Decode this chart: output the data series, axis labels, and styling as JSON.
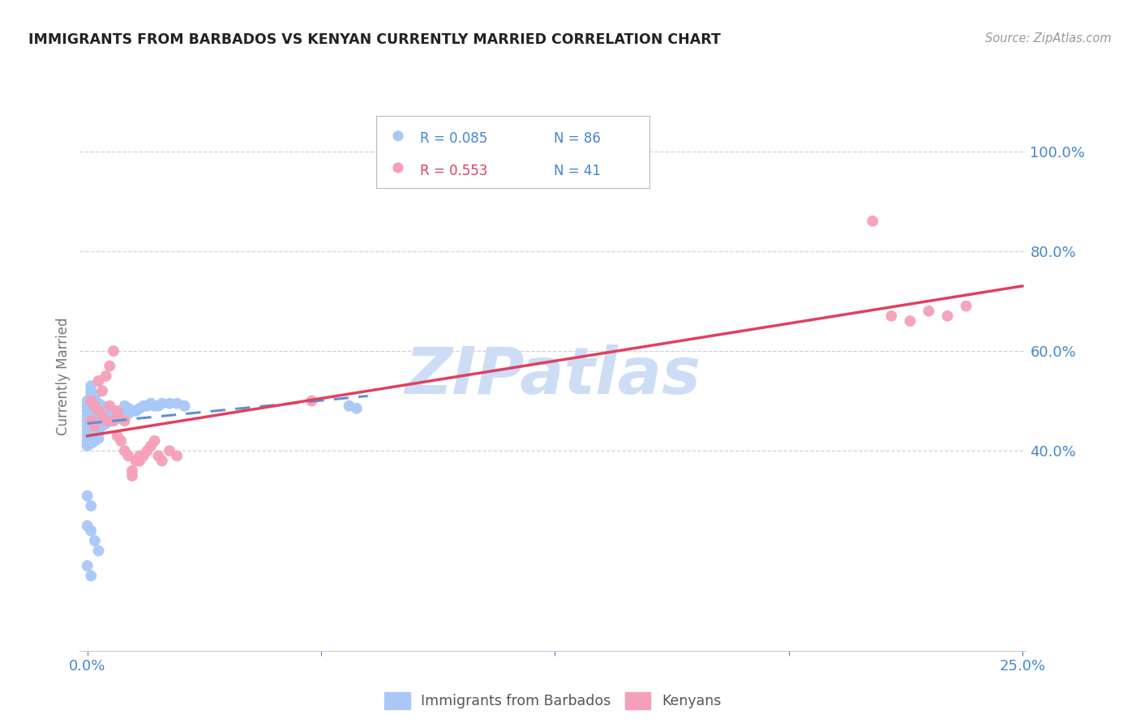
{
  "title": "IMMIGRANTS FROM BARBADOS VS KENYAN CURRENTLY MARRIED CORRELATION CHART",
  "source": "Source: ZipAtlas.com",
  "ylabel": "Currently Married",
  "series1_label": "Immigrants from Barbados",
  "series2_label": "Kenyans",
  "legend_r1": "R = 0.085",
  "legend_n1": "N = 86",
  "legend_r2": "R = 0.553",
  "legend_n2": "N = 41",
  "series1_color": "#a8c8f8",
  "series2_color": "#f5a0b8",
  "line1_color": "#6090d0",
  "line2_color": "#e04060",
  "legend_r1_color": "#4488cc",
  "legend_n1_color": "#4488cc",
  "legend_r2_color": "#e04060",
  "legend_n2_color": "#4488cc",
  "axis_label_color": "#4488cc",
  "title_color": "#222222",
  "source_color": "#999999",
  "ylabel_color": "#777777",
  "grid_color": "#d0d0e0",
  "watermark": "ZIPatlas",
  "watermark_color": "#ccddf5",
  "background_color": "#ffffff",
  "xlim": [
    0.0,
    0.25
  ],
  "ylim": [
    0.0,
    1.1
  ],
  "y_ticks": [
    0.4,
    0.6,
    0.8,
    1.0
  ],
  "y_tick_labels": [
    "40.0%",
    "60.0%",
    "80.0%",
    "100.0%"
  ],
  "x_tick_labels": [
    "0.0%",
    "",
    "",
    "",
    "25.0%"
  ],
  "line1_x": [
    0.0,
    0.075
  ],
  "line1_y": [
    0.455,
    0.51
  ],
  "line2_x": [
    0.0,
    0.25
  ],
  "line2_y": [
    0.43,
    0.73
  ],
  "series1_x": [
    0.0,
    0.0,
    0.0,
    0.0,
    0.0,
    0.0,
    0.0,
    0.0,
    0.0,
    0.0,
    0.001,
    0.001,
    0.001,
    0.001,
    0.001,
    0.001,
    0.001,
    0.001,
    0.001,
    0.001,
    0.001,
    0.001,
    0.001,
    0.002,
    0.002,
    0.002,
    0.002,
    0.002,
    0.002,
    0.002,
    0.002,
    0.002,
    0.002,
    0.003,
    0.003,
    0.003,
    0.003,
    0.003,
    0.003,
    0.003,
    0.003,
    0.004,
    0.004,
    0.004,
    0.004,
    0.004,
    0.005,
    0.005,
    0.005,
    0.005,
    0.006,
    0.006,
    0.006,
    0.007,
    0.007,
    0.007,
    0.008,
    0.008,
    0.009,
    0.009,
    0.01,
    0.01,
    0.011,
    0.011,
    0.012,
    0.013,
    0.014,
    0.015,
    0.016,
    0.017,
    0.018,
    0.019,
    0.02,
    0.022,
    0.024,
    0.026,
    0.07,
    0.072,
    0.0,
    0.001,
    0.0,
    0.001,
    0.002,
    0.003,
    0.0,
    0.001
  ],
  "series1_y": [
    0.44,
    0.45,
    0.46,
    0.47,
    0.48,
    0.49,
    0.5,
    0.42,
    0.43,
    0.41,
    0.445,
    0.455,
    0.465,
    0.475,
    0.485,
    0.495,
    0.435,
    0.425,
    0.415,
    0.505,
    0.515,
    0.52,
    0.53,
    0.44,
    0.45,
    0.46,
    0.47,
    0.48,
    0.49,
    0.5,
    0.43,
    0.51,
    0.42,
    0.445,
    0.455,
    0.465,
    0.475,
    0.485,
    0.495,
    0.435,
    0.425,
    0.45,
    0.46,
    0.47,
    0.48,
    0.49,
    0.455,
    0.465,
    0.475,
    0.485,
    0.46,
    0.47,
    0.48,
    0.46,
    0.47,
    0.48,
    0.465,
    0.475,
    0.465,
    0.475,
    0.47,
    0.49,
    0.475,
    0.485,
    0.48,
    0.48,
    0.485,
    0.49,
    0.49,
    0.495,
    0.49,
    0.49,
    0.495,
    0.495,
    0.495,
    0.49,
    0.49,
    0.485,
    0.31,
    0.29,
    0.25,
    0.24,
    0.22,
    0.2,
    0.17,
    0.15
  ],
  "series2_x": [
    0.001,
    0.001,
    0.002,
    0.002,
    0.003,
    0.003,
    0.004,
    0.004,
    0.005,
    0.005,
    0.006,
    0.006,
    0.007,
    0.007,
    0.008,
    0.008,
    0.009,
    0.01,
    0.011,
    0.012,
    0.013,
    0.014,
    0.015,
    0.016,
    0.017,
    0.018,
    0.019,
    0.02,
    0.022,
    0.024,
    0.008,
    0.01,
    0.012,
    0.014,
    0.06,
    0.21,
    0.215,
    0.22,
    0.225,
    0.23,
    0.235
  ],
  "series2_y": [
    0.46,
    0.5,
    0.45,
    0.49,
    0.48,
    0.54,
    0.47,
    0.52,
    0.46,
    0.55,
    0.49,
    0.57,
    0.46,
    0.6,
    0.43,
    0.47,
    0.42,
    0.4,
    0.39,
    0.36,
    0.38,
    0.38,
    0.39,
    0.4,
    0.41,
    0.42,
    0.39,
    0.38,
    0.4,
    0.39,
    0.48,
    0.46,
    0.35,
    0.39,
    0.5,
    0.86,
    0.67,
    0.66,
    0.68,
    0.67,
    0.69
  ]
}
